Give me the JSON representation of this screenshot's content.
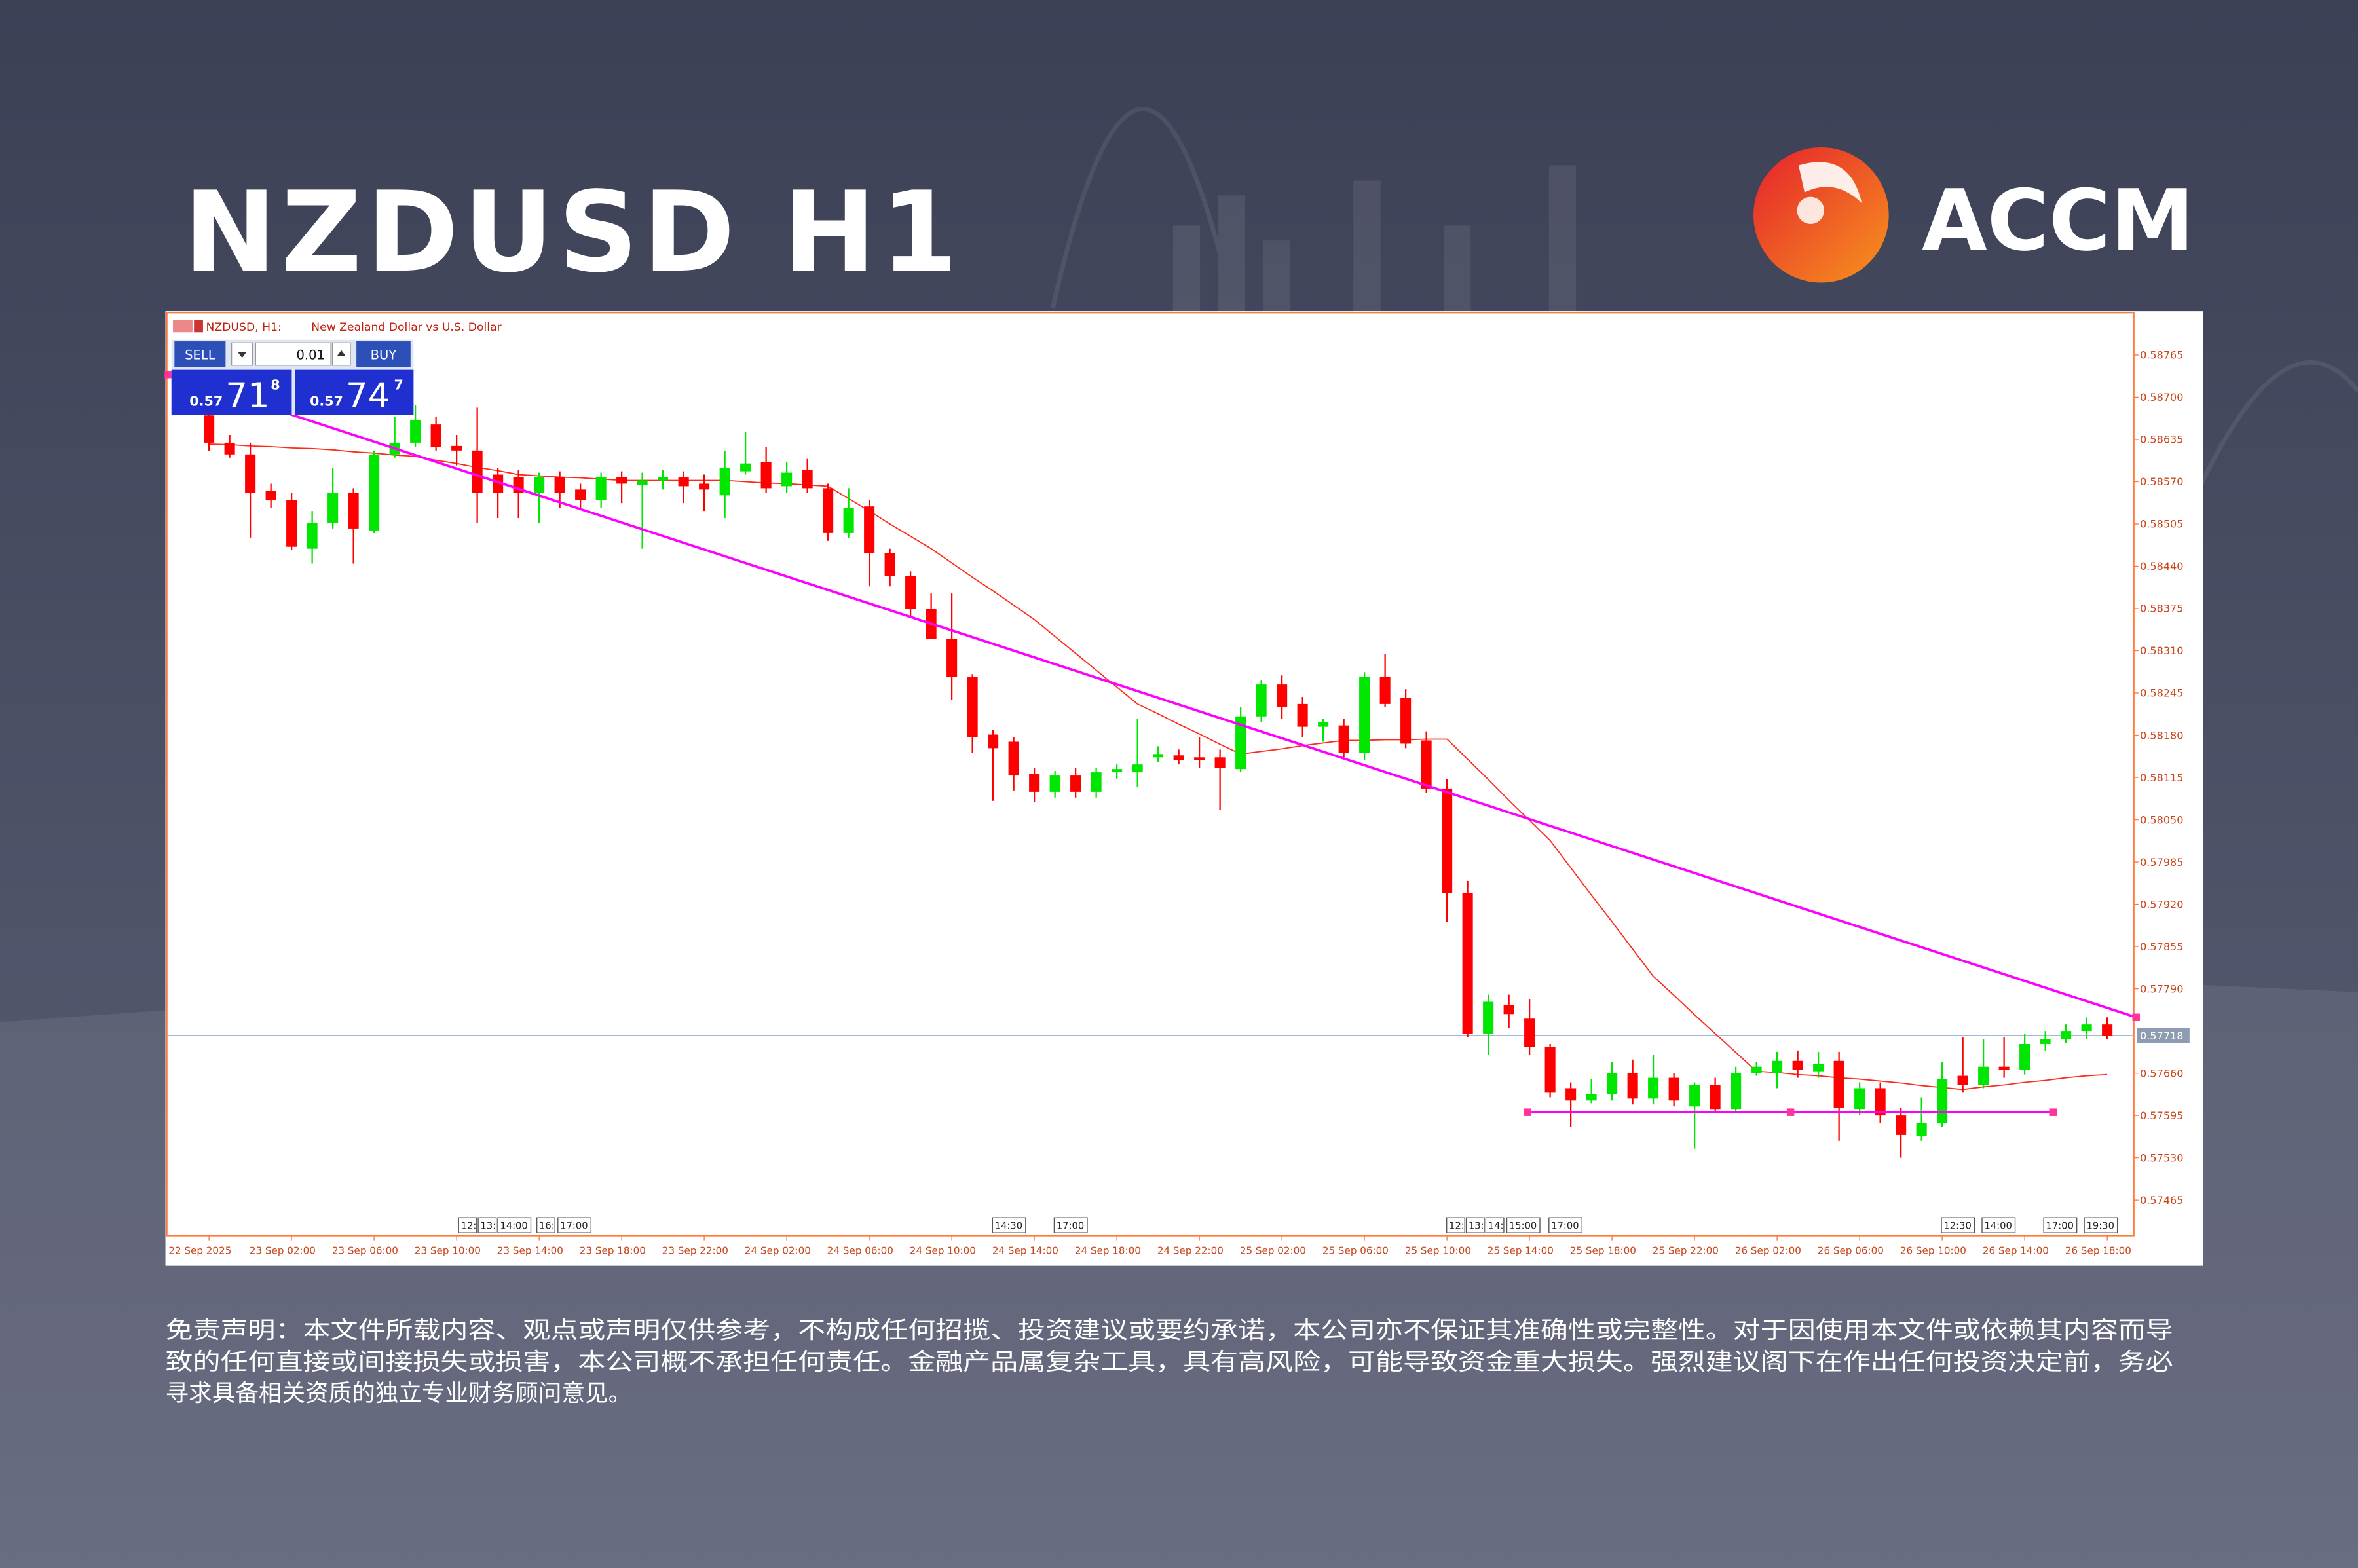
{
  "header": {
    "title": "NZDUSD H1",
    "logo": "ACCM"
  },
  "trade_panel": {
    "sell": "SELL",
    "buy": "BUY",
    "lot": "0.01",
    "sell_price": [
      "0.57",
      "71",
      "8"
    ],
    "buy_price": [
      "0.57",
      "74",
      "7"
    ]
  },
  "chart_data": {
    "type": "candlestick",
    "title": "NZDUSD, H1:",
    "subtitle": "New Zealand Dollar vs U.S. Dollar",
    "categories": [
      "22 Sep 2025",
      null,
      null,
      null,
      "23 Sep 02:00",
      null,
      null,
      null,
      "23 Sep 06:00",
      null,
      null,
      null,
      "23 Sep 10:00",
      null,
      null,
      null,
      "23 Sep 14:00",
      null,
      null,
      null,
      "23 Sep 18:00",
      null,
      null,
      null,
      "23 Sep 22:00",
      null,
      null,
      null,
      "24 Sep 02:00",
      null,
      null,
      null,
      "24 Sep 06:00",
      null,
      null,
      null,
      "24 Sep 10:00",
      null,
      null,
      null,
      "24 Sep 14:00",
      null,
      null,
      null,
      "24 Sep 18:00",
      null,
      null,
      null,
      "24 Sep 22:00",
      null,
      null,
      null,
      "25 Sep 02:00",
      null,
      null,
      null,
      "25 Sep 06:00",
      null,
      null,
      null,
      "25 Sep 10:00",
      null,
      null,
      null,
      "25 Sep 14:00",
      null,
      null,
      null,
      "25 Sep 18:00",
      null,
      null,
      null,
      "25 Sep 22:00",
      null,
      null,
      null,
      "26 Sep 02:00",
      null,
      null,
      null,
      "26 Sep 06:00",
      null,
      null,
      null,
      "26 Sep 10:00",
      null,
      null,
      null,
      "26 Sep 14:00",
      null,
      null,
      null,
      "26 Sep 18:00"
    ],
    "open": [
      0.58672,
      0.5863,
      0.58612,
      0.58556,
      0.58542,
      0.58467,
      0.58507,
      0.58553,
      0.58495,
      0.58612,
      0.5863,
      0.58658,
      0.58625,
      0.58618,
      0.58581,
      0.58577,
      0.58553,
      0.58577,
      0.58558,
      0.58542,
      0.58577,
      0.58565,
      0.58572,
      0.58577,
      0.58567,
      0.58549,
      0.58586,
      0.586,
      0.58563,
      0.58588,
      0.5856,
      0.58491,
      0.58532,
      0.5846,
      0.58425,
      0.58374,
      0.58328,
      0.5827,
      0.58181,
      0.5817,
      0.58121,
      0.58093,
      0.58118,
      0.58093,
      0.58123,
      0.58123,
      0.58146,
      0.58149,
      0.58146,
      0.58146,
      0.58128,
      0.58209,
      0.58258,
      0.58228,
      0.58193,
      0.58195,
      0.58153,
      0.5827,
      0.58237,
      0.58172,
      0.58098,
      0.57937,
      0.57721,
      0.57765,
      0.57744,
      0.577,
      0.57637,
      0.57618,
      0.57628,
      0.5766,
      0.57621,
      0.57653,
      0.57609,
      0.57642,
      0.57605,
      0.5766,
      0.5766,
      0.57679,
      0.57663,
      0.57679,
      0.57605,
      0.57637,
      0.57595,
      0.57563,
      0.57584,
      0.57656,
      0.57642,
      0.5767,
      0.57665,
      0.57705,
      0.57712,
      0.57725,
      0.57735
    ],
    "high": [
      0.58693,
      0.58642,
      0.5863,
      0.58567,
      0.58553,
      0.58525,
      0.58591,
      0.5856,
      0.58618,
      0.5867,
      0.58688,
      0.5867,
      0.58642,
      0.58684,
      0.58591,
      0.58588,
      0.58584,
      0.58586,
      0.58567,
      0.58584,
      0.58586,
      0.58584,
      0.58588,
      0.58586,
      0.58581,
      0.58618,
      0.58646,
      0.58623,
      0.586,
      0.58605,
      0.58567,
      0.5856,
      0.58542,
      0.58467,
      0.58432,
      0.58398,
      0.58398,
      0.58274,
      0.58188,
      0.58177,
      0.5813,
      0.58125,
      0.5813,
      0.5813,
      0.58135,
      0.58205,
      0.58163,
      0.58158,
      0.58177,
      0.58158,
      0.58223,
      0.58265,
      0.58272,
      0.58239,
      0.58205,
      0.58205,
      0.58277,
      0.58305,
      0.58251,
      0.58186,
      0.58112,
      0.57956,
      0.57781,
      0.57781,
      0.57774,
      0.57705,
      0.57646,
      0.57651,
      0.57677,
      0.57681,
      0.57688,
      0.5766,
      0.57646,
      0.57653,
      0.5767,
      0.57677,
      0.57693,
      0.57695,
      0.57693,
      0.57693,
      0.57646,
      0.57646,
      0.57607,
      0.57623,
      0.57677,
      0.57716,
      0.57712,
      0.57716,
      0.57721,
      0.57725,
      0.57735,
      0.57746,
      0.57746
    ],
    "low": [
      0.58618,
      0.58607,
      0.58484,
      0.5853,
      0.58465,
      0.58444,
      0.58498,
      0.58444,
      0.58491,
      0.58607,
      0.58623,
      0.58618,
      0.58595,
      0.58507,
      0.58514,
      0.58514,
      0.58507,
      0.5853,
      0.5853,
      0.5853,
      0.58537,
      0.58467,
      0.58558,
      0.58537,
      0.58525,
      0.58514,
      0.58581,
      0.58553,
      0.58553,
      0.58553,
      0.58479,
      0.58484,
      0.58409,
      0.58409,
      0.58363,
      0.58328,
      0.58235,
      0.58153,
      0.58079,
      0.58095,
      0.58077,
      0.58084,
      0.58084,
      0.58084,
      0.58112,
      0.581,
      0.58139,
      0.58135,
      0.5813,
      0.58065,
      0.58123,
      0.582,
      0.58205,
      0.58177,
      0.5817,
      0.58146,
      0.58142,
      0.58223,
      0.5816,
      0.58091,
      0.57893,
      0.57716,
      0.57688,
      0.5773,
      0.57688,
      0.57623,
      0.57577,
      0.57614,
      0.57618,
      0.57612,
      0.57612,
      0.57609,
      0.57544,
      0.576,
      0.576,
      0.57656,
      0.57637,
      0.57653,
      0.57653,
      0.57556,
      0.57595,
      0.57584,
      0.5753,
      0.57556,
      0.57577,
      0.5763,
      0.57637,
      0.57653,
      0.57658,
      0.57695,
      0.57707,
      0.57712,
      0.57712
    ],
    "close": [
      0.5863,
      0.58612,
      0.58553,
      0.58542,
      0.5847,
      0.58507,
      0.58553,
      0.58498,
      0.58612,
      0.5863,
      0.58665,
      0.58623,
      0.58618,
      0.58553,
      0.58553,
      0.58553,
      0.58577,
      0.58553,
      0.58542,
      0.58577,
      0.58567,
      0.58572,
      0.58577,
      0.58563,
      0.58558,
      0.58591,
      0.58598,
      0.5856,
      0.58584,
      0.5856,
      0.58491,
      0.5853,
      0.5846,
      0.58425,
      0.58374,
      0.58328,
      0.5827,
      0.58177,
      0.5816,
      0.58118,
      0.58093,
      0.58118,
      0.58093,
      0.58123,
      0.58128,
      0.58135,
      0.58151,
      0.58142,
      0.58142,
      0.5813,
      0.58209,
      0.58258,
      0.58223,
      0.58193,
      0.582,
      0.58153,
      0.5827,
      0.58228,
      0.58167,
      0.58098,
      0.57937,
      0.57721,
      0.5777,
      0.57751,
      0.577,
      0.5763,
      0.57618,
      0.57628,
      0.5766,
      0.57621,
      0.57653,
      0.57618,
      0.57642,
      0.57605,
      0.5766,
      0.5767,
      0.57679,
      0.57665,
      0.57674,
      0.57607,
      0.57637,
      0.57595,
      0.57565,
      0.57584,
      0.57651,
      0.57642,
      0.5767,
      0.57665,
      0.57705,
      0.57712,
      0.57725,
      0.57735,
      0.57718
    ],
    "up_color": "#00e600",
    "down_color": "#ff0000",
    "ma": {
      "color": "#ff2a1a",
      "values": [
        0.58628,
        0.58627,
        0.58625,
        0.58624,
        0.58622,
        0.58621,
        0.58619,
        0.58616,
        0.58614,
        0.58611,
        0.58609,
        0.58603,
        0.58598,
        0.58592,
        0.58587,
        0.58581,
        0.58579,
        0.58577,
        0.58576,
        0.58574,
        0.58572,
        0.58572,
        0.58572,
        0.58572,
        0.58572,
        0.58572,
        0.5857,
        0.58568,
        0.58567,
        0.58565,
        0.58563,
        0.58544,
        0.58525,
        0.58505,
        0.58486,
        0.58467,
        0.58445,
        0.58423,
        0.58402,
        0.5838,
        0.58358,
        0.58332,
        0.58306,
        0.5828,
        0.58254,
        0.58228,
        0.58213,
        0.58197,
        0.58182,
        0.58166,
        0.58151,
        0.58155,
        0.58159,
        0.58164,
        0.58168,
        0.58172,
        0.58172,
        0.58173,
        0.58173,
        0.58174,
        0.58174,
        0.58143,
        0.58112,
        0.5808,
        0.58049,
        0.58018,
        0.57976,
        0.57934,
        0.57893,
        0.57851,
        0.57809,
        0.5778,
        0.5775,
        0.57721,
        0.57692,
        0.57663,
        0.57661,
        0.57658,
        0.57656,
        0.57653,
        0.57651,
        0.57648,
        0.57645,
        0.57641,
        0.57638,
        0.57635,
        0.57639,
        0.57642,
        0.57646,
        0.57649,
        0.57653,
        0.57656,
        0.57658
      ]
    },
    "trendlines": [
      {
        "color": "#ff00ff",
        "x": [
          -1.97,
          93.4
        ],
        "values": [
          0.58735,
          0.57746
        ]
      },
      {
        "color": "#ff00ff",
        "x": [
          63.9,
          89.4
        ],
        "values": [
          0.576,
          0.576
        ]
      }
    ],
    "bid": 0.57718,
    "ylim": [
      0.5741,
      0.5883
    ],
    "yticks": [
      0.58765,
      {
        "value": 0.587,
        "label": "0.58700"
      },
      0.58635,
      {
        "value": 0.5857,
        "label": "0.58570"
      },
      0.58505,
      {
        "value": 0.5844,
        "label": "0.58440"
      },
      0.58375,
      {
        "value": 0.5831,
        "label": "0.58310"
      },
      0.58245,
      {
        "value": 0.5818,
        "label": "0.58180"
      },
      0.58115,
      {
        "value": 0.5805,
        "label": "0.58050"
      },
      0.57985,
      {
        "value": 0.5792,
        "label": "0.57920"
      },
      0.57855,
      {
        "value": 0.5779,
        "label": "0.57790"
      },
      {
        "value": 0.5766,
        "label": "0.57660"
      },
      0.57595,
      {
        "value": 0.5753,
        "label": "0.57530"
      },
      0.57465
    ],
    "grid": false,
    "event_labels": [
      "12:",
      "13:",
      "14:00",
      "16:",
      "17:00",
      "14:30",
      "17:00",
      "12:",
      "13:",
      "14:",
      "15:00",
      "17:00",
      "12:30",
      "14:00",
      "17:00",
      "19:30"
    ]
  },
  "disclaimer": [
    "免责声明：本文件所载内容、观点或声明仅供参考，不构成任何招揽、投资建议或要约承诺，本公司亦不保证其准确性或完整性。对于因使用本文件或依赖其内容而导",
    "致的任何直接或间接损失或损害，本公司概不承担任何责任。金融产品属复杂工具，具有高风险，可能导致资金重大损失。强烈建议阁下在作出任何投资决定前，务必",
    "寻求具备相关资质的独立专业财务顾问意见。"
  ]
}
